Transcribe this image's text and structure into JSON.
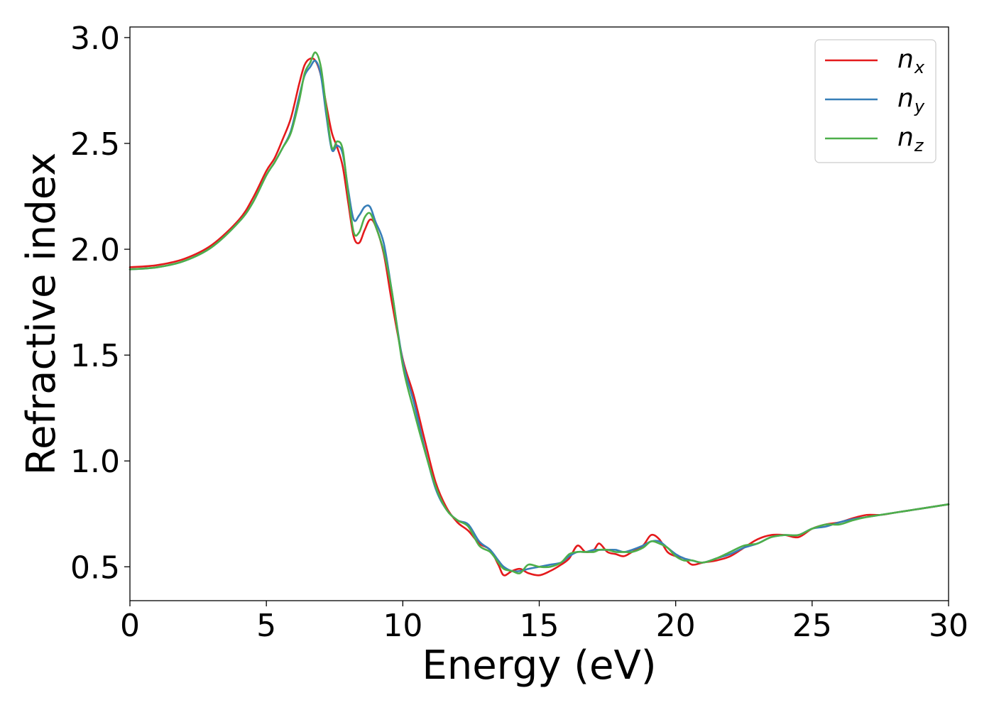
{
  "chart_data": {
    "type": "line",
    "title": "",
    "xlabel": "Energy (eV)",
    "ylabel": "Refractive index",
    "xlim": [
      0,
      30
    ],
    "ylim": [
      0.34,
      3.05
    ],
    "xticks": [
      0,
      5,
      10,
      15,
      20,
      25,
      30
    ],
    "xtick_labels": [
      "0",
      "5",
      "10",
      "15",
      "20",
      "25",
      "30"
    ],
    "yticks": [
      0.5,
      1.0,
      1.5,
      2.0,
      2.5,
      3.0
    ],
    "ytick_labels": [
      "0.5",
      "1.0",
      "1.5",
      "2.0",
      "2.5",
      "3.0"
    ],
    "grid": false,
    "legend_position": "top-right",
    "series": [
      {
        "name": "n",
        "subscript": "x",
        "color": "#e41a1c",
        "points": [
          [
            0,
            1.915
          ],
          [
            1,
            1.925
          ],
          [
            2,
            1.955
          ],
          [
            3,
            2.02
          ],
          [
            4,
            2.14
          ],
          [
            4.5,
            2.24
          ],
          [
            5,
            2.37
          ],
          [
            5.3,
            2.43
          ],
          [
            5.6,
            2.52
          ],
          [
            5.9,
            2.62
          ],
          [
            6.2,
            2.78
          ],
          [
            6.4,
            2.87
          ],
          [
            6.6,
            2.9
          ],
          [
            6.8,
            2.89
          ],
          [
            7.0,
            2.82
          ],
          [
            7.2,
            2.68
          ],
          [
            7.4,
            2.55
          ],
          [
            7.6,
            2.48
          ],
          [
            7.8,
            2.39
          ],
          [
            8.0,
            2.22
          ],
          [
            8.2,
            2.06
          ],
          [
            8.4,
            2.03
          ],
          [
            8.6,
            2.09
          ],
          [
            8.8,
            2.14
          ],
          [
            9.0,
            2.11
          ],
          [
            9.3,
            1.98
          ],
          [
            9.6,
            1.75
          ],
          [
            10,
            1.48
          ],
          [
            10.4,
            1.31
          ],
          [
            10.8,
            1.1
          ],
          [
            11.2,
            0.9
          ],
          [
            11.6,
            0.78
          ],
          [
            12,
            0.71
          ],
          [
            12.4,
            0.67
          ],
          [
            12.8,
            0.61
          ],
          [
            13.2,
            0.58
          ],
          [
            13.5,
            0.51
          ],
          [
            13.7,
            0.46
          ],
          [
            14,
            0.48
          ],
          [
            14.3,
            0.49
          ],
          [
            14.6,
            0.47
          ],
          [
            15,
            0.46
          ],
          [
            15.4,
            0.48
          ],
          [
            15.8,
            0.51
          ],
          [
            16.1,
            0.54
          ],
          [
            16.4,
            0.6
          ],
          [
            16.7,
            0.57
          ],
          [
            17,
            0.58
          ],
          [
            17.2,
            0.61
          ],
          [
            17.5,
            0.57
          ],
          [
            17.8,
            0.56
          ],
          [
            18.1,
            0.55
          ],
          [
            18.4,
            0.57
          ],
          [
            18.8,
            0.6
          ],
          [
            19.1,
            0.65
          ],
          [
            19.4,
            0.63
          ],
          [
            19.7,
            0.57
          ],
          [
            20,
            0.55
          ],
          [
            20.3,
            0.54
          ],
          [
            20.6,
            0.51
          ],
          [
            21,
            0.52
          ],
          [
            21.5,
            0.53
          ],
          [
            22,
            0.55
          ],
          [
            22.5,
            0.59
          ],
          [
            23,
            0.63
          ],
          [
            23.5,
            0.65
          ],
          [
            24,
            0.65
          ],
          [
            24.5,
            0.64
          ],
          [
            25,
            0.68
          ],
          [
            25.5,
            0.7
          ],
          [
            26,
            0.71
          ],
          [
            26.5,
            0.73
          ],
          [
            27,
            0.745
          ],
          [
            27.5,
            0.745
          ],
          [
            28,
            0.755
          ],
          [
            28.5,
            0.765
          ],
          [
            29,
            0.775
          ],
          [
            29.5,
            0.785
          ],
          [
            30,
            0.795
          ]
        ]
      },
      {
        "name": "n",
        "subscript": "y",
        "color": "#377eb8",
        "points": [
          [
            0,
            1.905
          ],
          [
            1,
            1.915
          ],
          [
            2,
            1.945
          ],
          [
            3,
            2.01
          ],
          [
            4,
            2.13
          ],
          [
            4.5,
            2.22
          ],
          [
            5,
            2.35
          ],
          [
            5.3,
            2.41
          ],
          [
            5.6,
            2.48
          ],
          [
            5.9,
            2.56
          ],
          [
            6.2,
            2.72
          ],
          [
            6.4,
            2.82
          ],
          [
            6.6,
            2.86
          ],
          [
            6.8,
            2.89
          ],
          [
            7.0,
            2.82
          ],
          [
            7.2,
            2.63
          ],
          [
            7.4,
            2.47
          ],
          [
            7.6,
            2.49
          ],
          [
            7.8,
            2.45
          ],
          [
            8.0,
            2.28
          ],
          [
            8.2,
            2.14
          ],
          [
            8.4,
            2.16
          ],
          [
            8.6,
            2.2
          ],
          [
            8.8,
            2.2
          ],
          [
            9.0,
            2.13
          ],
          [
            9.3,
            2.03
          ],
          [
            9.6,
            1.8
          ],
          [
            10,
            1.47
          ],
          [
            10.4,
            1.28
          ],
          [
            10.8,
            1.06
          ],
          [
            11.2,
            0.87
          ],
          [
            11.6,
            0.77
          ],
          [
            12,
            0.72
          ],
          [
            12.4,
            0.7
          ],
          [
            12.8,
            0.62
          ],
          [
            13.2,
            0.58
          ],
          [
            13.5,
            0.53
          ],
          [
            13.7,
            0.5
          ],
          [
            14,
            0.48
          ],
          [
            14.3,
            0.48
          ],
          [
            14.6,
            0.49
          ],
          [
            15,
            0.5
          ],
          [
            15.4,
            0.51
          ],
          [
            15.8,
            0.52
          ],
          [
            16.1,
            0.55
          ],
          [
            16.4,
            0.57
          ],
          [
            16.7,
            0.57
          ],
          [
            17,
            0.58
          ],
          [
            17.2,
            0.58
          ],
          [
            17.5,
            0.58
          ],
          [
            17.8,
            0.58
          ],
          [
            18.1,
            0.57
          ],
          [
            18.4,
            0.58
          ],
          [
            18.8,
            0.6
          ],
          [
            19.1,
            0.62
          ],
          [
            19.4,
            0.62
          ],
          [
            19.7,
            0.59
          ],
          [
            20,
            0.56
          ],
          [
            20.3,
            0.54
          ],
          [
            20.6,
            0.53
          ],
          [
            21,
            0.52
          ],
          [
            21.5,
            0.54
          ],
          [
            22,
            0.56
          ],
          [
            22.5,
            0.59
          ],
          [
            23,
            0.61
          ],
          [
            23.5,
            0.64
          ],
          [
            24,
            0.65
          ],
          [
            24.5,
            0.65
          ],
          [
            25,
            0.68
          ],
          [
            25.5,
            0.69
          ],
          [
            26,
            0.71
          ],
          [
            26.5,
            0.725
          ],
          [
            27,
            0.735
          ],
          [
            27.5,
            0.745
          ],
          [
            28,
            0.755
          ],
          [
            28.5,
            0.765
          ],
          [
            29,
            0.775
          ],
          [
            29.5,
            0.785
          ],
          [
            30,
            0.795
          ]
        ]
      },
      {
        "name": "n",
        "subscript": "z",
        "color": "#4daf4a",
        "points": [
          [
            0,
            1.905
          ],
          [
            1,
            1.915
          ],
          [
            2,
            1.945
          ],
          [
            3,
            2.01
          ],
          [
            4,
            2.13
          ],
          [
            4.5,
            2.22
          ],
          [
            5,
            2.35
          ],
          [
            5.3,
            2.41
          ],
          [
            5.6,
            2.48
          ],
          [
            5.9,
            2.55
          ],
          [
            6.2,
            2.7
          ],
          [
            6.4,
            2.83
          ],
          [
            6.6,
            2.88
          ],
          [
            6.8,
            2.93
          ],
          [
            7.0,
            2.86
          ],
          [
            7.2,
            2.66
          ],
          [
            7.4,
            2.48
          ],
          [
            7.6,
            2.51
          ],
          [
            7.8,
            2.47
          ],
          [
            8.0,
            2.26
          ],
          [
            8.2,
            2.08
          ],
          [
            8.4,
            2.08
          ],
          [
            8.6,
            2.15
          ],
          [
            8.8,
            2.17
          ],
          [
            9.0,
            2.11
          ],
          [
            9.3,
            1.99
          ],
          [
            9.6,
            1.8
          ],
          [
            10,
            1.45
          ],
          [
            10.4,
            1.24
          ],
          [
            10.8,
            1.05
          ],
          [
            11.2,
            0.88
          ],
          [
            11.6,
            0.77
          ],
          [
            12,
            0.72
          ],
          [
            12.4,
            0.69
          ],
          [
            12.8,
            0.6
          ],
          [
            13.2,
            0.57
          ],
          [
            13.5,
            0.52
          ],
          [
            13.7,
            0.49
          ],
          [
            14,
            0.48
          ],
          [
            14.3,
            0.47
          ],
          [
            14.6,
            0.51
          ],
          [
            15,
            0.5
          ],
          [
            15.4,
            0.5
          ],
          [
            15.8,
            0.52
          ],
          [
            16.1,
            0.56
          ],
          [
            16.4,
            0.57
          ],
          [
            16.7,
            0.57
          ],
          [
            17,
            0.57
          ],
          [
            17.2,
            0.58
          ],
          [
            17.5,
            0.58
          ],
          [
            17.8,
            0.57
          ],
          [
            18.1,
            0.57
          ],
          [
            18.4,
            0.57
          ],
          [
            18.8,
            0.59
          ],
          [
            19.1,
            0.62
          ],
          [
            19.4,
            0.61
          ],
          [
            19.7,
            0.59
          ],
          [
            20,
            0.55
          ],
          [
            20.3,
            0.53
          ],
          [
            20.6,
            0.53
          ],
          [
            21,
            0.52
          ],
          [
            21.5,
            0.54
          ],
          [
            22,
            0.57
          ],
          [
            22.5,
            0.6
          ],
          [
            23,
            0.61
          ],
          [
            23.5,
            0.64
          ],
          [
            24,
            0.65
          ],
          [
            24.5,
            0.65
          ],
          [
            25,
            0.68
          ],
          [
            25.5,
            0.7
          ],
          [
            26,
            0.7
          ],
          [
            26.5,
            0.72
          ],
          [
            27,
            0.735
          ],
          [
            27.5,
            0.745
          ],
          [
            28,
            0.755
          ],
          [
            28.5,
            0.765
          ],
          [
            29,
            0.775
          ],
          [
            29.5,
            0.785
          ],
          [
            30,
            0.795
          ]
        ]
      }
    ]
  }
}
